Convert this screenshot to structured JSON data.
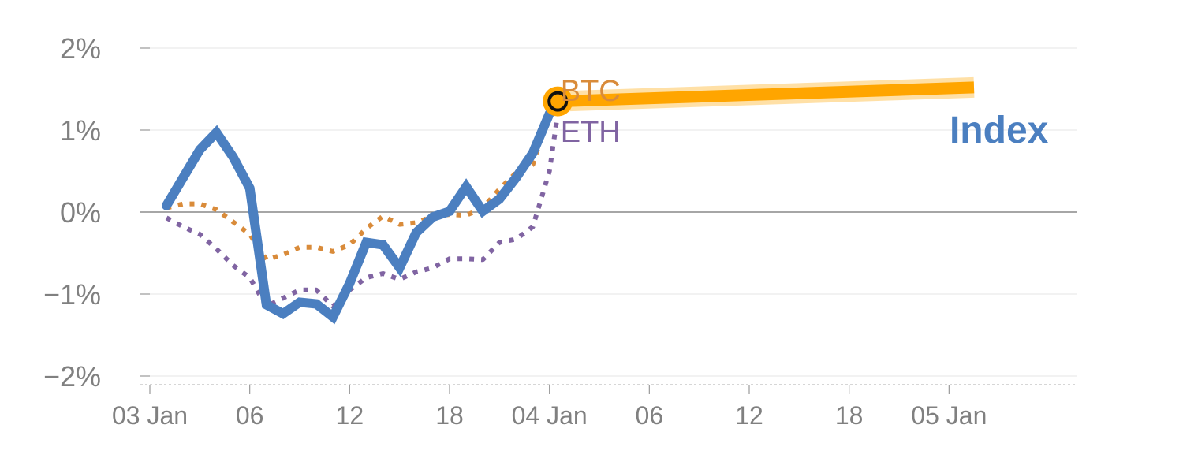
{
  "chart_data": {
    "type": "line",
    "title": "",
    "xlabel": "",
    "ylabel": "",
    "ylim": [
      -2.05,
      2.1
    ],
    "x_start": "03 Jan 00:00",
    "x_end": "05 Jan 06:00",
    "y_ticks": [
      {
        "value": 2,
        "label": "2%"
      },
      {
        "value": 1,
        "label": "1%"
      },
      {
        "value": 0,
        "label": "0%"
      },
      {
        "value": -1,
        "label": "−1%"
      },
      {
        "value": -2,
        "label": "−2%"
      }
    ],
    "x_ticks": [
      {
        "x": "03 Jan 00:00",
        "label": "03 Jan"
      },
      {
        "x": "03 Jan 06:00",
        "label": "06"
      },
      {
        "x": "03 Jan 12:00",
        "label": "12"
      },
      {
        "x": "03 Jan 18:00",
        "label": "18"
      },
      {
        "x": "04 Jan 00:00",
        "label": "04 Jan"
      },
      {
        "x": "04 Jan 06:00",
        "label": "06"
      },
      {
        "x": "04 Jan 12:00",
        "label": "12"
      },
      {
        "x": "04 Jan 18:00",
        "label": "18"
      },
      {
        "x": "05 Jan 00:00",
        "label": "05 Jan"
      }
    ],
    "series": [
      {
        "name": "Index",
        "color": "#4b7fc0",
        "style": "solid",
        "x": [
          "03 Jan 01:00",
          "03 Jan 02:00",
          "03 Jan 03:00",
          "03 Jan 04:00",
          "03 Jan 05:00",
          "03 Jan 06:00",
          "03 Jan 07:00",
          "03 Jan 08:00",
          "03 Jan 09:00",
          "03 Jan 10:00",
          "03 Jan 11:00",
          "03 Jan 12:00",
          "03 Jan 13:00",
          "03 Jan 14:00",
          "03 Jan 15:00",
          "03 Jan 16:00",
          "03 Jan 17:00",
          "03 Jan 18:00",
          "03 Jan 19:00",
          "03 Jan 20:00",
          "03 Jan 21:00",
          "03 Jan 22:00",
          "03 Jan 23:00",
          "04 Jan 00:00",
          "04 Jan 00:30"
        ],
        "y": [
          0.08,
          0.42,
          0.76,
          0.97,
          0.67,
          0.29,
          -1.13,
          -1.24,
          -1.1,
          -1.12,
          -1.28,
          -0.87,
          -0.37,
          -0.4,
          -0.68,
          -0.25,
          -0.06,
          0.01,
          0.31,
          0.01,
          0.16,
          0.42,
          0.72,
          1.2,
          1.35
        ]
      },
      {
        "name": "BTC",
        "color": "#d98b3a",
        "style": "dotted",
        "x": [
          "03 Jan 01:00",
          "03 Jan 02:00",
          "03 Jan 03:00",
          "03 Jan 04:00",
          "03 Jan 05:00",
          "03 Jan 06:00",
          "03 Jan 07:00",
          "03 Jan 08:00",
          "03 Jan 09:00",
          "03 Jan 10:00",
          "03 Jan 11:00",
          "03 Jan 12:00",
          "03 Jan 13:00",
          "03 Jan 14:00",
          "03 Jan 15:00",
          "03 Jan 16:00",
          "03 Jan 17:00",
          "03 Jan 18:00",
          "03 Jan 19:00",
          "03 Jan 20:00",
          "03 Jan 21:00",
          "03 Jan 22:00",
          "03 Jan 23:00",
          "04 Jan 00:00",
          "04 Jan 00:30"
        ],
        "y": [
          0.05,
          0.1,
          0.1,
          0.03,
          -0.12,
          -0.27,
          -0.58,
          -0.52,
          -0.43,
          -0.43,
          -0.48,
          -0.4,
          -0.2,
          -0.05,
          -0.15,
          -0.13,
          -0.05,
          -0.03,
          -0.04,
          0.05,
          0.28,
          0.48,
          0.58,
          1.22,
          1.35
        ]
      },
      {
        "name": "ETH",
        "color": "#8064a2",
        "style": "dotted",
        "x": [
          "03 Jan 01:00",
          "03 Jan 02:00",
          "03 Jan 03:00",
          "03 Jan 04:00",
          "03 Jan 05:00",
          "03 Jan 06:00",
          "03 Jan 07:00",
          "03 Jan 08:00",
          "03 Jan 09:00",
          "03 Jan 10:00",
          "03 Jan 11:00",
          "03 Jan 12:00",
          "03 Jan 13:00",
          "03 Jan 14:00",
          "03 Jan 15:00",
          "03 Jan 16:00",
          "03 Jan 17:00",
          "03 Jan 18:00",
          "03 Jan 19:00",
          "03 Jan 20:00",
          "03 Jan 21:00",
          "03 Jan 22:00",
          "03 Jan 23:00",
          "04 Jan 00:00",
          "04 Jan 00:30"
        ],
        "y": [
          -0.07,
          -0.18,
          -0.27,
          -0.45,
          -0.65,
          -0.8,
          -1.15,
          -1.05,
          -0.95,
          -0.95,
          -1.15,
          -0.95,
          -0.8,
          -0.75,
          -0.82,
          -0.73,
          -0.68,
          -0.57,
          -0.57,
          -0.58,
          -0.37,
          -0.33,
          -0.18,
          0.5,
          1.2
        ]
      },
      {
        "name": "Index",
        "color": "#ffa500",
        "style": "projection",
        "x": [
          "04 Jan 00:30",
          "05 Jan 01:30"
        ],
        "y": [
          1.35,
          1.52
        ]
      }
    ],
    "marker": {
      "x": "04 Jan 00:30",
      "y": 1.35,
      "color": "#ffa500"
    },
    "labels": [
      {
        "text": "BTC",
        "color": "#d98b3a",
        "x": "04 Jan 00:40",
        "y": 1.48
      },
      {
        "text": "ETH",
        "color": "#8064a2",
        "x": "04 Jan 00:40",
        "y": 0.98
      },
      {
        "text": "Index",
        "color": "#4b7fc0",
        "x": "05 Jan 03:00",
        "y": 0.97
      }
    ]
  }
}
